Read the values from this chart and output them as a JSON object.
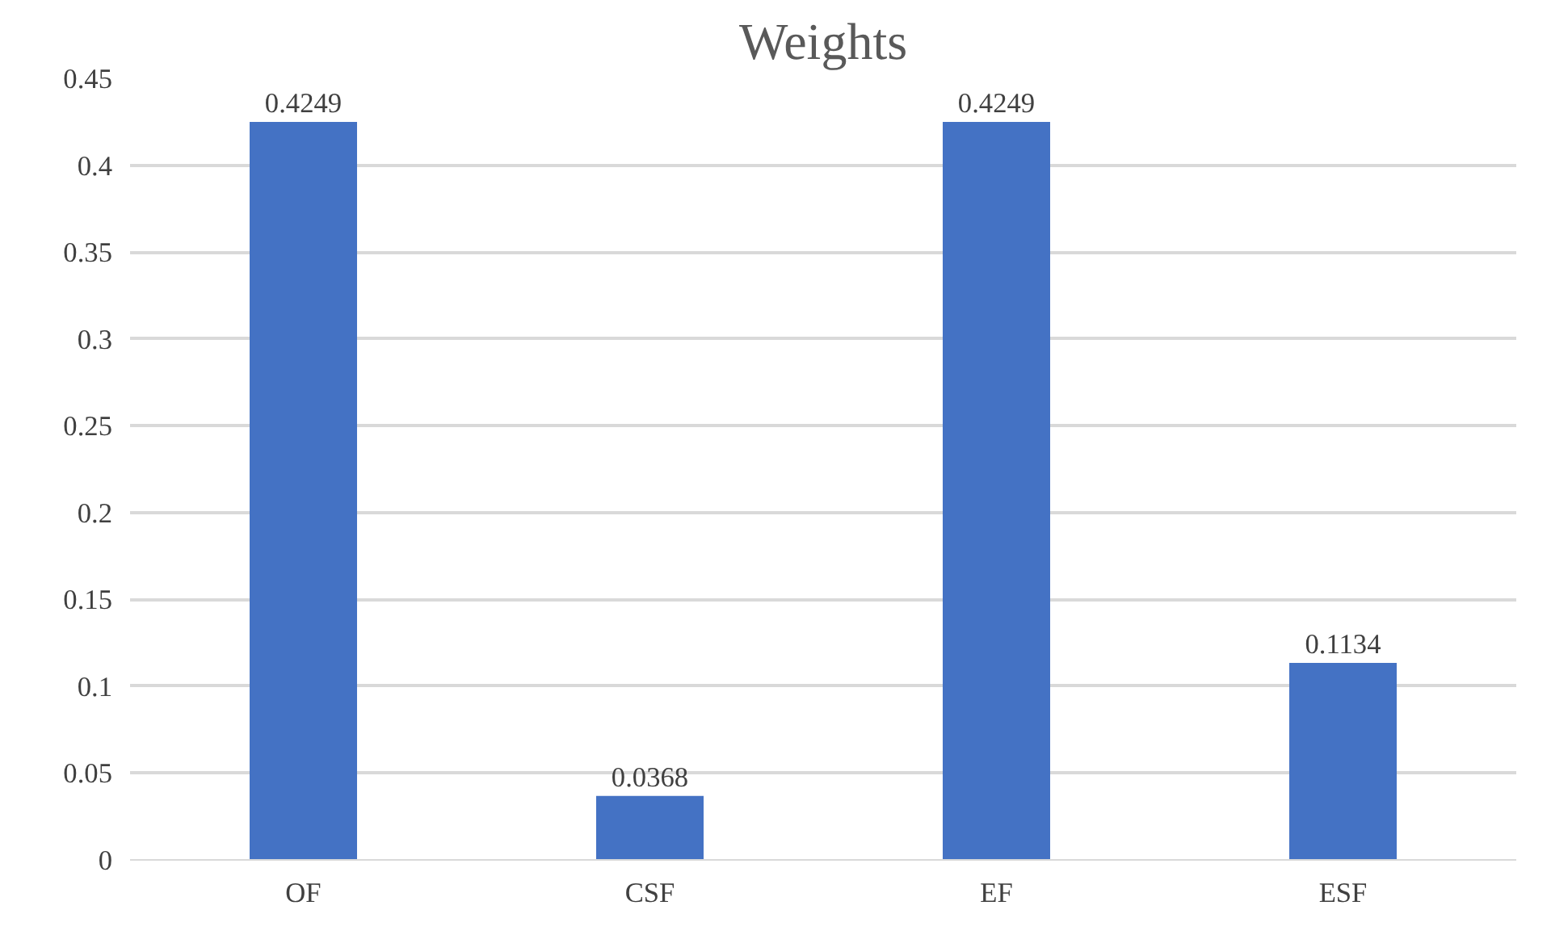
{
  "chart_data": {
    "type": "bar",
    "title": "Weights",
    "categories": [
      "OF",
      "CSF",
      "EF",
      "ESF"
    ],
    "values": [
      0.4249,
      0.0368,
      0.4249,
      0.1134
    ],
    "color": "#4472c4",
    "ylim": [
      0,
      0.45
    ],
    "yticks": [
      0,
      0.05,
      0.1,
      0.15,
      0.2,
      0.25,
      0.3,
      0.35,
      0.4,
      0.45
    ],
    "grid": "y",
    "data_labels": true
  }
}
